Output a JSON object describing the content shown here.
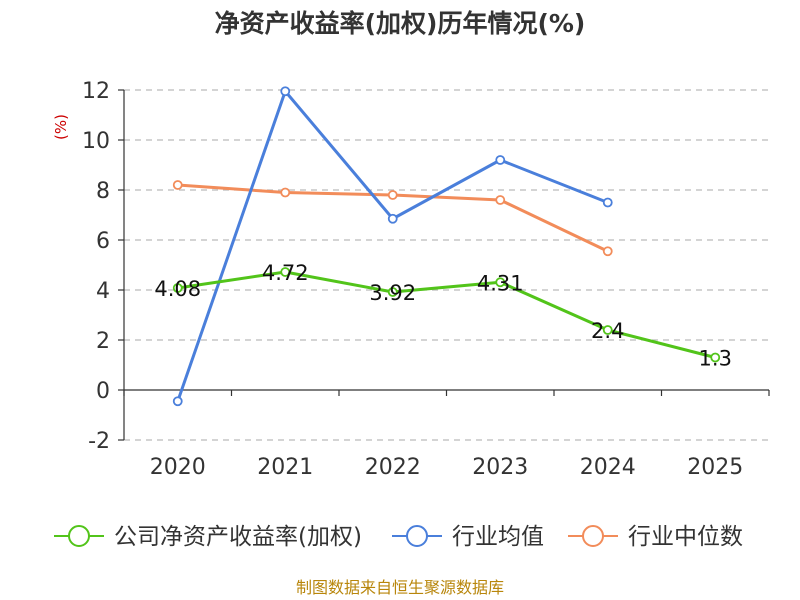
{
  "chart_data": {
    "type": "line",
    "title": "净资产收益率(加权)历年情况(%)",
    "ylabel": "(%)",
    "xlabel": "",
    "categories": [
      "2020",
      "2021",
      "2022",
      "2023",
      "2024",
      "2025"
    ],
    "ylim": [
      -2,
      12
    ],
    "yticks": [
      "-2",
      "0",
      "2",
      "4",
      "6",
      "8",
      "10",
      "12"
    ],
    "grid": true,
    "legend_position": "bottom",
    "series": [
      {
        "name": "公司净资产收益率(加权)",
        "color": "#52c41a",
        "values": [
          4.08,
          4.72,
          3.92,
          4.31,
          2.4,
          1.3
        ],
        "labels": [
          "4.08",
          "4.72",
          "3.92",
          "4.31",
          "2.4",
          "1.3"
        ]
      },
      {
        "name": "行业均值",
        "color": "#4a7fdb",
        "values": [
          -0.45,
          11.95,
          6.85,
          9.2,
          7.5,
          null
        ]
      },
      {
        "name": "行业中位数",
        "color": "#f28c5a",
        "values": [
          8.2,
          7.9,
          7.8,
          7.6,
          5.55,
          null
        ]
      }
    ],
    "source": "制图数据来自恒生聚源数据库"
  }
}
